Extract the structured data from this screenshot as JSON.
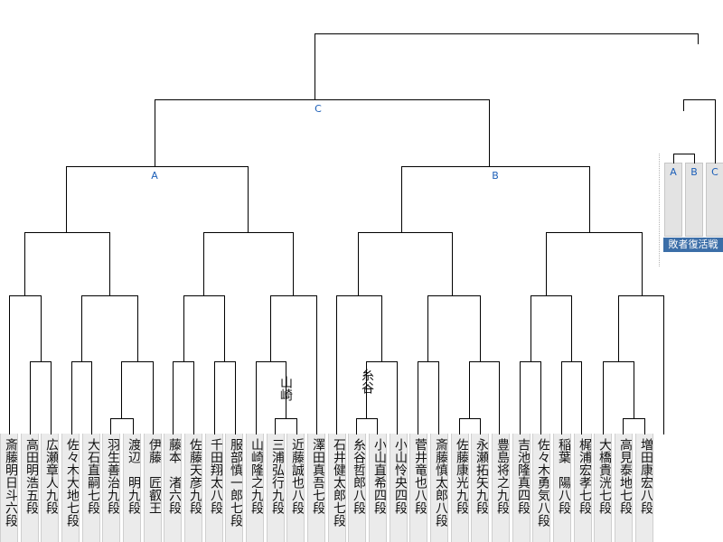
{
  "players": [
    "斎藤明日斗六段",
    "高田明浩五段",
    "広瀬章人九段",
    "佐々木大地七段",
    "大石直嗣七段",
    "羽生善治九段",
    "渡辺　明九段",
    "伊藤　匠叡王",
    "藤本　渚六段",
    "佐藤天彦九段",
    "千田翔太八段",
    "服部慎一郎七段",
    "山崎隆之九段",
    "三浦弘行九段",
    "近藤誠也八段",
    "澤田真吾七段",
    "石井健太郎七段",
    "糸谷哲郎八段",
    "小山直希四段",
    "小山怜央四段",
    "菅井竜也八段",
    "斎藤慎太郎八段",
    "佐藤康光九段",
    "永瀬拓矢九段",
    "豊島将之九段",
    "吉池隆真四段",
    "佐々木勇気八段",
    "稲葉　陽八段",
    "梶浦宏孝七段",
    "大橋貴洸七段",
    "高見泰地七段",
    "増田康宏八段"
  ],
  "annotations": [
    "山崎",
    "糸谷"
  ],
  "block_labels": {
    "a": "A",
    "b": "B",
    "c": "C"
  },
  "revival": {
    "boxes": [
      "A",
      "B",
      "C"
    ],
    "label": "敗者復活戦"
  },
  "colors": {
    "accent": "#1c5fb8",
    "label_bg": "#3b6ea8",
    "cell_bg": "#ebebeb"
  }
}
